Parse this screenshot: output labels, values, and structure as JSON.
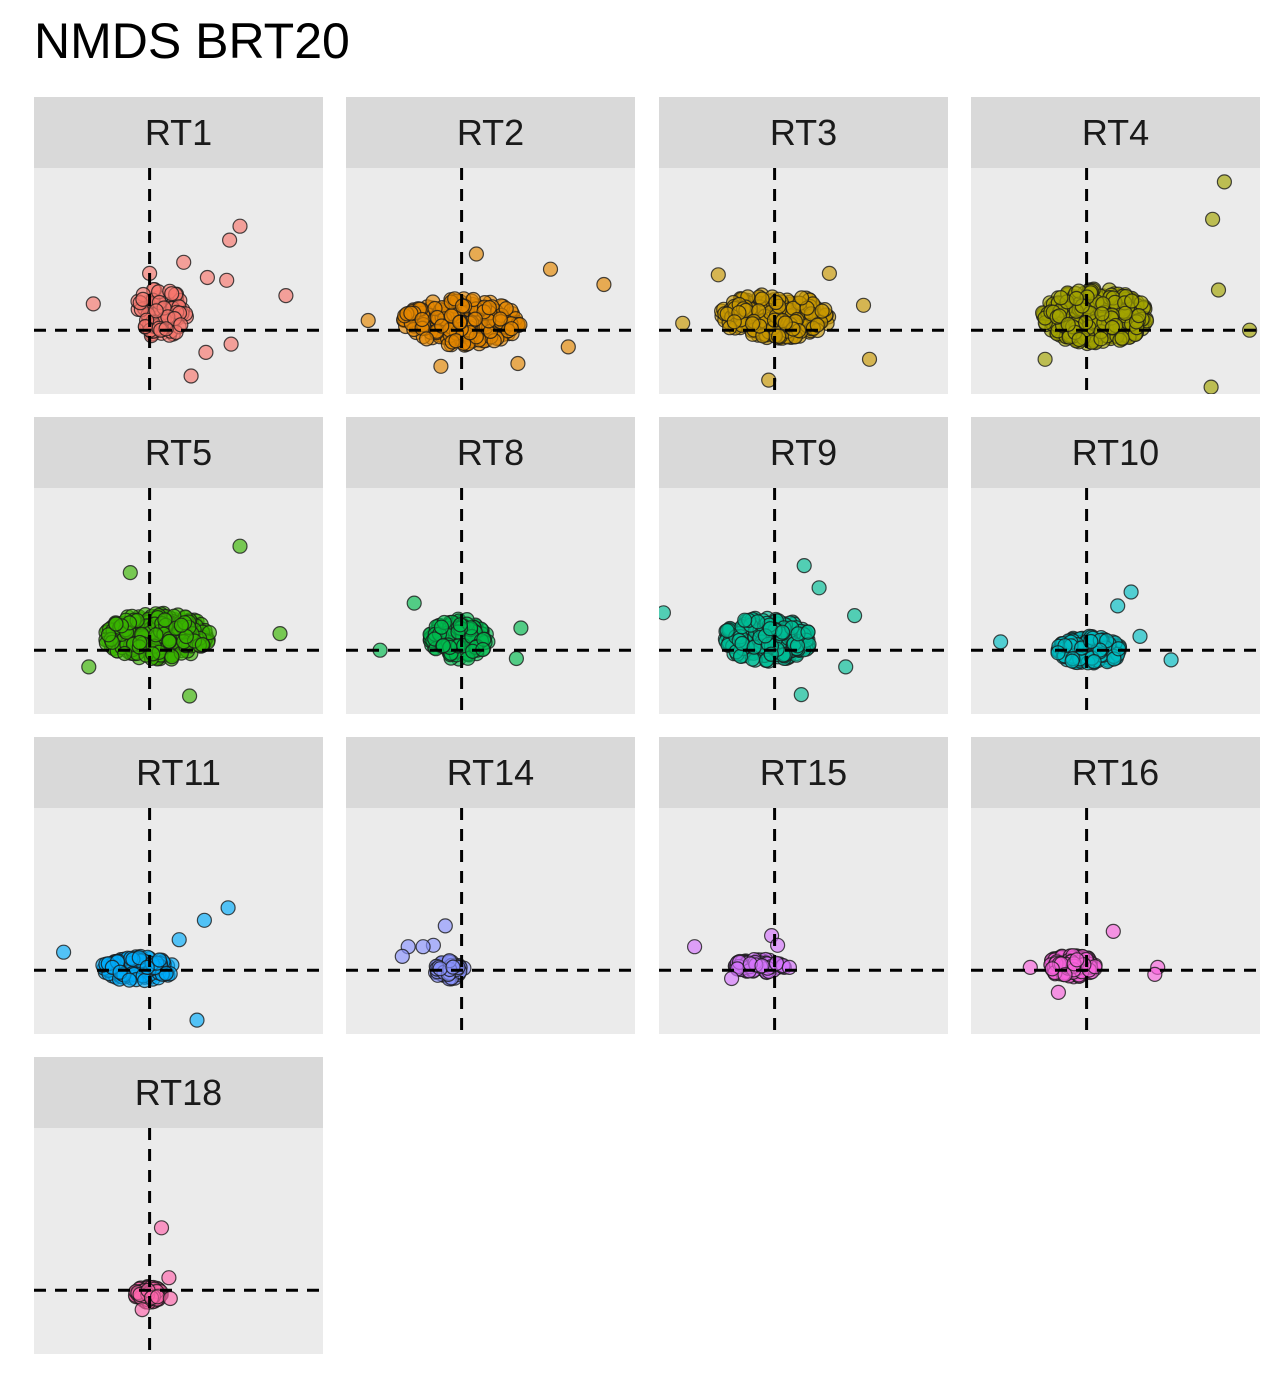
{
  "title": "NMDS BRT20",
  "chart_data": {
    "type": "scatter",
    "title": "NMDS BRT20",
    "xlabel": "",
    "ylabel": "",
    "grid": false,
    "reference_lines": {
      "x": 0,
      "y": 0,
      "style": "dashed"
    },
    "xlim": [
      -0.78,
      1.17
    ],
    "ylim": [
      -0.46,
      1.17
    ],
    "facets": [
      {
        "name": "RT1",
        "color": "#F8766D",
        "center": [
          0.07,
          0.12
        ],
        "spread": [
          0.18,
          0.18
        ],
        "n": 95,
        "points": [
          [
            -0.38,
            0.19
          ],
          [
            0.39,
            0.38
          ],
          [
            0.52,
            0.36
          ],
          [
            0.92,
            0.25
          ],
          [
            0.61,
            0.75
          ],
          [
            0.54,
            0.65
          ],
          [
            0.23,
            0.49
          ],
          [
            0.0,
            0.41
          ],
          [
            0.38,
            -0.16
          ],
          [
            0.55,
            -0.1
          ],
          [
            0.28,
            -0.33
          ]
        ]
      },
      {
        "name": "RT2",
        "color": "#E58700",
        "center": [
          0.0,
          0.06
        ],
        "spread": [
          0.4,
          0.17
        ],
        "n": 260,
        "points": [
          [
            0.96,
            0.33
          ],
          [
            0.1,
            0.55
          ],
          [
            -0.63,
            0.07
          ],
          [
            0.6,
            0.44
          ],
          [
            0.38,
            -0.24
          ],
          [
            -0.14,
            -0.26
          ],
          [
            0.72,
            -0.12
          ]
        ]
      },
      {
        "name": "RT3",
        "color": "#C99800",
        "center": [
          0.0,
          0.1
        ],
        "spread": [
          0.38,
          0.16
        ],
        "n": 240,
        "points": [
          [
            0.64,
            -0.21
          ],
          [
            -0.04,
            -0.36
          ],
          [
            -0.62,
            0.05
          ],
          [
            -0.38,
            0.4
          ],
          [
            0.37,
            0.41
          ],
          [
            0.6,
            0.18
          ]
        ]
      },
      {
        "name": "RT4",
        "color": "#A3A500",
        "center": [
          0.06,
          0.1
        ],
        "spread": [
          0.36,
          0.2
        ],
        "n": 420,
        "points": [
          [
            0.93,
            1.07
          ],
          [
            0.85,
            0.8
          ],
          [
            0.89,
            0.29
          ],
          [
            1.1,
            0.0
          ],
          [
            0.84,
            -0.41
          ],
          [
            -0.28,
            -0.21
          ]
        ]
      },
      {
        "name": "RT5",
        "color": "#39B600",
        "center": [
          0.05,
          0.1
        ],
        "spread": [
          0.36,
          0.17
        ],
        "n": 380,
        "points": [
          [
            0.61,
            0.75
          ],
          [
            0.88,
            0.12
          ],
          [
            0.27,
            -0.33
          ],
          [
            -0.13,
            0.56
          ],
          [
            -0.41,
            -0.12
          ]
        ]
      },
      {
        "name": "RT8",
        "color": "#00BB4E",
        "center": [
          -0.02,
          0.08
        ],
        "spread": [
          0.2,
          0.15
        ],
        "n": 180,
        "points": [
          [
            0.4,
            0.16
          ],
          [
            -0.55,
            0.0
          ],
          [
            0.37,
            -0.06
          ],
          [
            -0.32,
            0.34
          ]
        ]
      },
      {
        "name": "RT9",
        "color": "#00BF96",
        "center": [
          -0.05,
          0.08
        ],
        "spread": [
          0.3,
          0.16
        ],
        "n": 260,
        "points": [
          [
            0.2,
            0.61
          ],
          [
            0.18,
            -0.32
          ],
          [
            0.54,
            0.25
          ],
          [
            -0.75,
            0.27
          ],
          [
            0.48,
            -0.12
          ],
          [
            0.3,
            0.45
          ]
        ]
      },
      {
        "name": "RT10",
        "color": "#00BFC4",
        "center": [
          0.02,
          0.0
        ],
        "spread": [
          0.22,
          0.1
        ],
        "n": 200,
        "points": [
          [
            0.3,
            0.42
          ],
          [
            0.36,
            0.1
          ],
          [
            0.57,
            -0.07
          ],
          [
            -0.58,
            0.06
          ],
          [
            0.21,
            0.32
          ]
        ]
      },
      {
        "name": "RT11",
        "color": "#00ACFC",
        "center": [
          -0.08,
          0.01
        ],
        "spread": [
          0.25,
          0.09
        ],
        "n": 170,
        "points": [
          [
            0.53,
            0.45
          ],
          [
            0.37,
            0.36
          ],
          [
            0.32,
            -0.36
          ],
          [
            -0.58,
            0.13
          ],
          [
            0.2,
            0.22
          ]
        ]
      },
      {
        "name": "RT14",
        "color": "#8B93FF",
        "center": [
          -0.08,
          0.0
        ],
        "spread": [
          0.1,
          0.07
        ],
        "n": 60,
        "points": [
          [
            -0.11,
            0.32
          ],
          [
            -0.36,
            0.17
          ],
          [
            -0.19,
            0.18
          ],
          [
            -0.26,
            0.17
          ],
          [
            -0.4,
            0.1
          ]
        ]
      },
      {
        "name": "RT15",
        "color": "#D575FE",
        "center": [
          -0.1,
          0.03
        ],
        "spread": [
          0.18,
          0.05
        ],
        "n": 95,
        "points": [
          [
            -0.02,
            0.25
          ],
          [
            0.02,
            0.18
          ],
          [
            -0.54,
            0.17
          ],
          [
            0.1,
            0.02
          ],
          [
            -0.29,
            -0.06
          ]
        ]
      },
      {
        "name": "RT16",
        "color": "#F962DD",
        "center": [
          -0.1,
          0.03
        ],
        "spread": [
          0.16,
          0.08
        ],
        "n": 170,
        "points": [
          [
            0.18,
            0.28
          ],
          [
            0.48,
            0.02
          ],
          [
            0.46,
            -0.03
          ],
          [
            -0.19,
            -0.16
          ],
          [
            -0.38,
            0.02
          ]
        ]
      },
      {
        "name": "RT18",
        "color": "#FF65AC",
        "center": [
          -0.01,
          -0.03
        ],
        "spread": [
          0.09,
          0.06
        ],
        "n": 120,
        "points": [
          [
            0.08,
            0.45
          ],
          [
            0.14,
            -0.06
          ],
          [
            0.13,
            0.09
          ],
          [
            -0.05,
            -0.14
          ]
        ]
      }
    ]
  }
}
